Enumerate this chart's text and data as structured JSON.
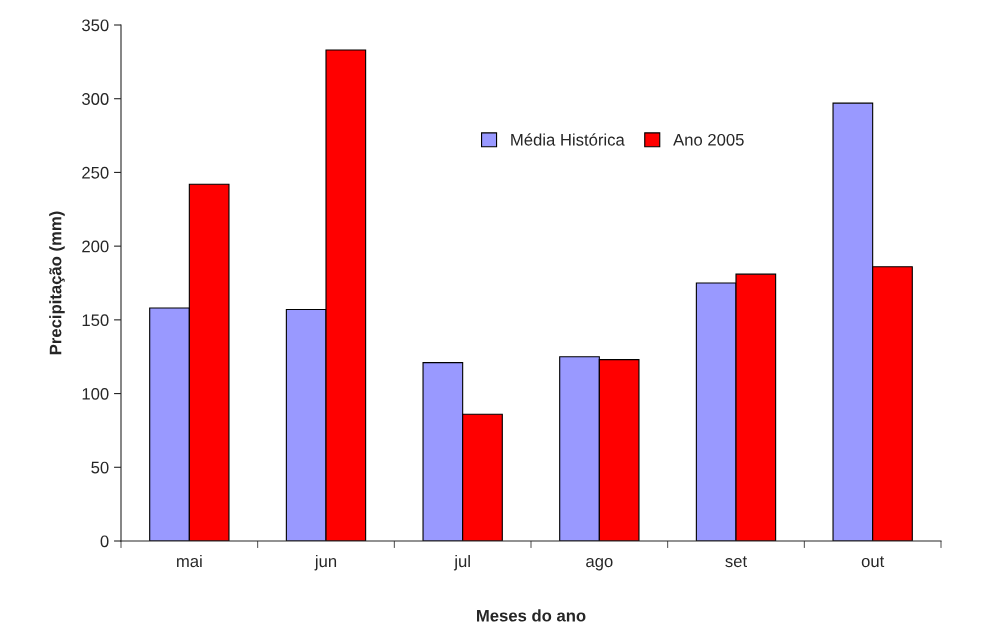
{
  "chart_data": {
    "type": "bar",
    "xlabel": "Meses do ano",
    "ylabel": "Precipitação (mm)",
    "categories": [
      "mai",
      "jun",
      "jul",
      "ago",
      "set",
      "out"
    ],
    "series": [
      {
        "name": "Média Histórica",
        "color": "#9999ff",
        "values": [
          158,
          157,
          121,
          125,
          175,
          297
        ]
      },
      {
        "name": "Ano 2005",
        "color": "#ff0000",
        "values": [
          242,
          333,
          86,
          123,
          181,
          186
        ]
      }
    ],
    "ylim": [
      0,
      350
    ],
    "yticks": [
      0,
      50,
      100,
      150,
      200,
      250,
      300,
      350
    ],
    "grid": false,
    "legend": "top"
  }
}
